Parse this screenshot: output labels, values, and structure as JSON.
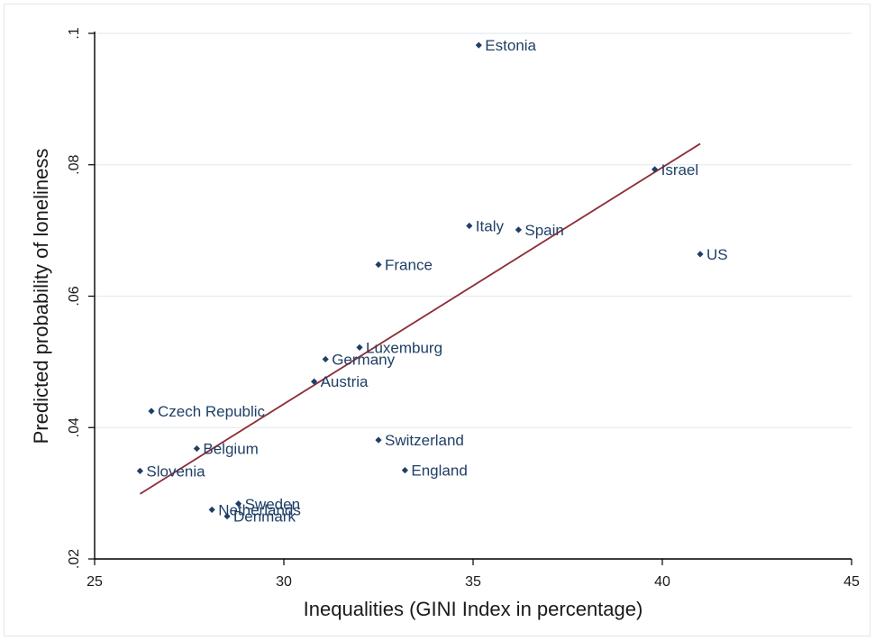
{
  "chart_data": {
    "type": "scatter",
    "title": "",
    "xlabel": "Inequalities (GINI Index in percentage)",
    "ylabel": "Predicted probability of loneliness",
    "xlim": [
      25,
      45
    ],
    "ylim": [
      0.02,
      0.1
    ],
    "x_ticks": [
      25,
      30,
      35,
      40,
      45
    ],
    "x_tick_labels": [
      "25",
      "30",
      "35",
      "40",
      "45"
    ],
    "y_ticks": [
      0.02,
      0.04,
      0.06,
      0.08,
      0.1
    ],
    "y_tick_labels": [
      ".02",
      ".04",
      ".06",
      ".08",
      ".1"
    ],
    "grid": "horizontal",
    "legend": "none",
    "colors": {
      "point": "#1f3f66",
      "label": "#1f3f66",
      "fit_line": "#8b2c36",
      "grid": "#e6ebef",
      "axis": "#000000"
    },
    "points": [
      {
        "label": "Estonia",
        "x": 35.15,
        "y": 0.0982
      },
      {
        "label": "Israel",
        "x": 39.8,
        "y": 0.0793
      },
      {
        "label": "Italy",
        "x": 34.9,
        "y": 0.0707
      },
      {
        "label": "Spain",
        "x": 36.2,
        "y": 0.0701
      },
      {
        "label": "US",
        "x": 41.0,
        "y": 0.0664
      },
      {
        "label": "France",
        "x": 32.5,
        "y": 0.0648
      },
      {
        "label": "Luxemburg",
        "x": 32.0,
        "y": 0.0522
      },
      {
        "label": "Germany",
        "x": 31.1,
        "y": 0.0504
      },
      {
        "label": "Austria",
        "x": 30.8,
        "y": 0.047
      },
      {
        "label": "Czech Republic",
        "x": 26.5,
        "y": 0.0425
      },
      {
        "label": "Switzerland",
        "x": 32.5,
        "y": 0.0381
      },
      {
        "label": "Belgium",
        "x": 27.7,
        "y": 0.0368
      },
      {
        "label": "Slovenia",
        "x": 26.2,
        "y": 0.0334
      },
      {
        "label": "England",
        "x": 33.2,
        "y": 0.0335
      },
      {
        "label": "Sweden",
        "x": 28.8,
        "y": 0.0284
      },
      {
        "label": "Netherlands",
        "x": 28.1,
        "y": 0.0275
      },
      {
        "label": "Denmark",
        "x": 28.5,
        "y": 0.0265
      }
    ],
    "fit_line": {
      "x": [
        26.2,
        41.0
      ],
      "y": [
        0.0299,
        0.0832
      ]
    }
  }
}
